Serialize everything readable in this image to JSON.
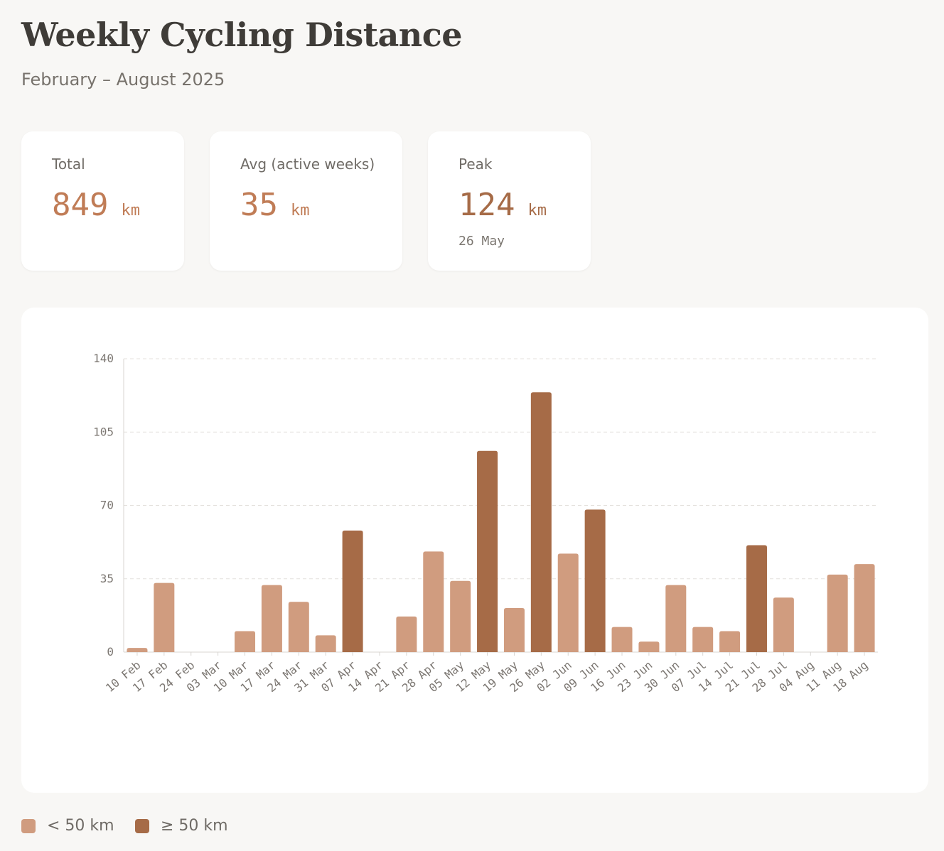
{
  "header": {
    "title": "Weekly Cycling Distance",
    "subtitle": "February – August 2025"
  },
  "stats": [
    {
      "label": "Total",
      "value": "849",
      "unit": "km"
    },
    {
      "label": "Avg (active weeks)",
      "value": "35",
      "unit": "km"
    },
    {
      "label": "Peak",
      "value": "124",
      "unit": "km",
      "sub": "26 May"
    }
  ],
  "colors": {
    "below": "#d09c7f",
    "above": "#a66b47",
    "accent": "#c07c56"
  },
  "legend": [
    {
      "label": "< 50 km",
      "color": "#d09c7f"
    },
    {
      "label": "≥ 50 km",
      "color": "#a66b47"
    }
  ],
  "chart_data": {
    "type": "bar",
    "threshold": 50,
    "categories": [
      "10 Feb",
      "17 Feb",
      "24 Feb",
      "03 Mar",
      "10 Mar",
      "17 Mar",
      "24 Mar",
      "31 Mar",
      "07 Apr",
      "14 Apr",
      "21 Apr",
      "28 Apr",
      "05 May",
      "12 May",
      "19 May",
      "26 May",
      "02 Jun",
      "09 Jun",
      "16 Jun",
      "23 Jun",
      "30 Jun",
      "07 Jul",
      "14 Jul",
      "21 Jul",
      "28 Jul",
      "04 Aug",
      "11 Aug",
      "18 Aug"
    ],
    "values": [
      2,
      33,
      0,
      0,
      10,
      32,
      24,
      8,
      58,
      0,
      17,
      48,
      34,
      96,
      21,
      124,
      47,
      68,
      12,
      5,
      32,
      12,
      10,
      51,
      26,
      0,
      37,
      42
    ],
    "ylim": [
      0,
      140
    ],
    "yticks": [
      0,
      35,
      70,
      105,
      140
    ],
    "grid": true
  }
}
